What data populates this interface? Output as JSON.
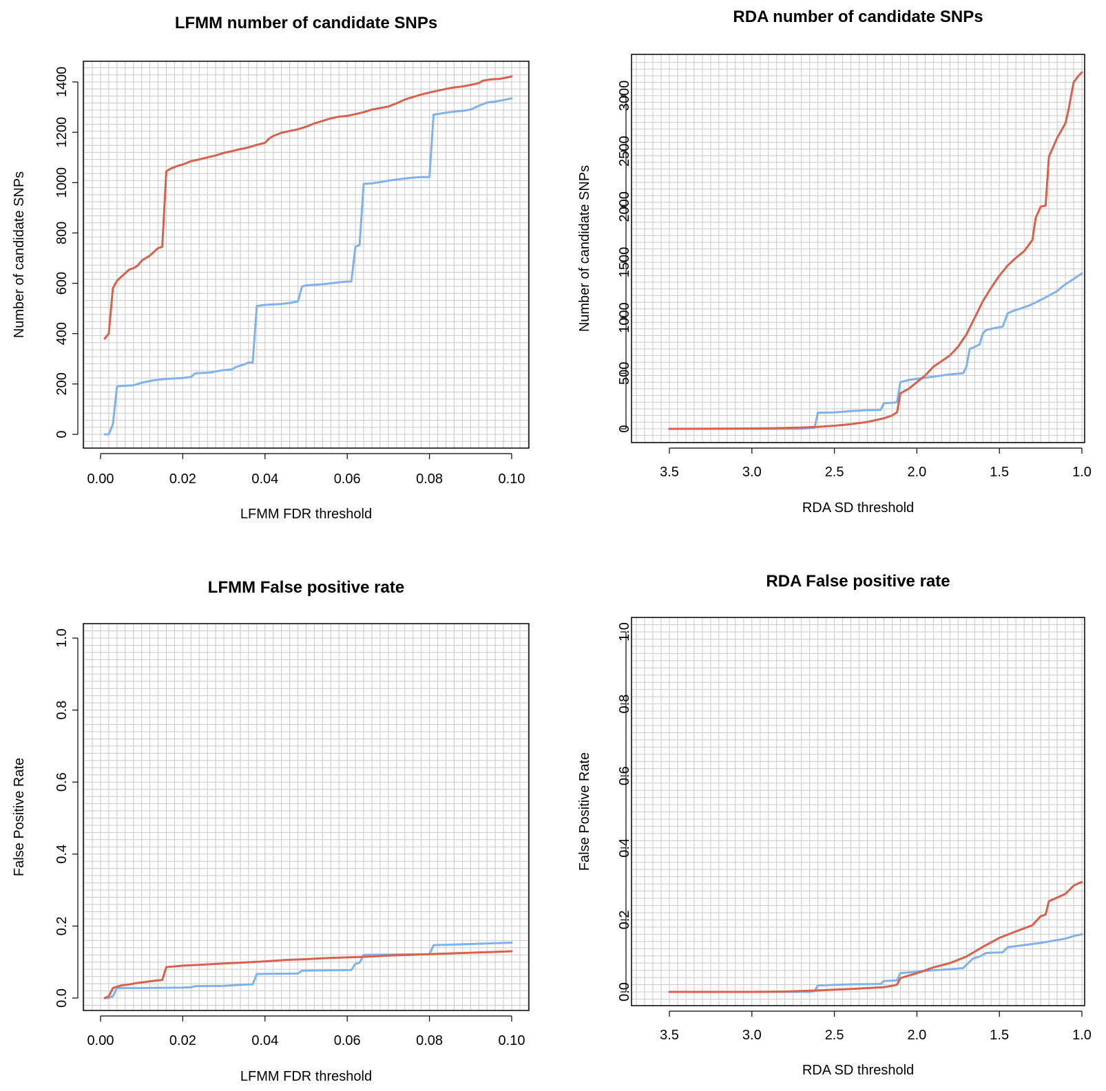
{
  "colors": {
    "red": "#d9604a",
    "blue": "#7fb2ec",
    "grid": "#c8c8c8"
  },
  "chart_data": [
    {
      "type": "line",
      "title": "LFMM number of candidate SNPs",
      "xlabel": "LFMM FDR threshold",
      "ylabel": "Number of candidate SNPs",
      "xlim": [
        0.0,
        0.1
      ],
      "ylim": [
        0,
        1400
      ],
      "xticks": [
        "0.00",
        "0.02",
        "0.04",
        "0.06",
        "0.08",
        "0.10"
      ],
      "yticks": [
        "0",
        "200",
        "400",
        "600",
        "800",
        "1000",
        "1200",
        "1400"
      ],
      "grid": true,
      "series": [
        {
          "color": "red",
          "x": [
            0.001,
            0.002,
            0.003,
            0.004,
            0.005,
            0.006,
            0.007,
            0.008,
            0.009,
            0.01,
            0.011,
            0.012,
            0.013,
            0.014,
            0.015,
            0.016,
            0.017,
            0.018,
            0.019,
            0.02,
            0.022,
            0.024,
            0.026,
            0.028,
            0.03,
            0.032,
            0.034,
            0.036,
            0.038,
            0.04,
            0.041,
            0.042,
            0.044,
            0.046,
            0.048,
            0.05,
            0.052,
            0.054,
            0.056,
            0.058,
            0.06,
            0.062,
            0.064,
            0.066,
            0.068,
            0.07,
            0.072,
            0.073,
            0.074,
            0.076,
            0.078,
            0.08,
            0.082,
            0.084,
            0.086,
            0.088,
            0.09,
            0.092,
            0.093,
            0.095,
            0.097,
            0.099,
            0.1
          ],
          "y": [
            380,
            400,
            580,
            610,
            625,
            640,
            655,
            660,
            670,
            690,
            700,
            710,
            725,
            740,
            745,
            1045,
            1055,
            1062,
            1068,
            1072,
            1085,
            1092,
            1100,
            1108,
            1118,
            1125,
            1133,
            1140,
            1150,
            1158,
            1175,
            1185,
            1198,
            1205,
            1212,
            1222,
            1235,
            1245,
            1255,
            1262,
            1265,
            1272,
            1280,
            1290,
            1296,
            1302,
            1315,
            1322,
            1330,
            1340,
            1350,
            1358,
            1365,
            1372,
            1378,
            1382,
            1388,
            1395,
            1405,
            1410,
            1412,
            1418,
            1422
          ]
        },
        {
          "color": "blue",
          "x": [
            0.001,
            0.002,
            0.003,
            0.004,
            0.005,
            0.008,
            0.01,
            0.013,
            0.016,
            0.018,
            0.02,
            0.022,
            0.023,
            0.025,
            0.027,
            0.028,
            0.03,
            0.032,
            0.033,
            0.035,
            0.036,
            0.037,
            0.038,
            0.04,
            0.042,
            0.044,
            0.046,
            0.048,
            0.049,
            0.05,
            0.052,
            0.054,
            0.056,
            0.058,
            0.06,
            0.061,
            0.062,
            0.063,
            0.064,
            0.066,
            0.068,
            0.07,
            0.072,
            0.074,
            0.076,
            0.078,
            0.08,
            0.081,
            0.082,
            0.084,
            0.086,
            0.088,
            0.09,
            0.092,
            0.094,
            0.096,
            0.098,
            0.1
          ],
          "y": [
            0,
            0,
            40,
            190,
            192,
            195,
            205,
            215,
            220,
            222,
            224,
            228,
            242,
            244,
            246,
            250,
            255,
            258,
            268,
            278,
            285,
            285,
            510,
            514,
            516,
            518,
            522,
            528,
            587,
            592,
            594,
            596,
            600,
            604,
            607,
            607,
            745,
            752,
            995,
            997,
            1002,
            1008,
            1012,
            1016,
            1020,
            1022,
            1022,
            1270,
            1272,
            1278,
            1282,
            1285,
            1290,
            1305,
            1318,
            1322,
            1328,
            1335
          ]
        }
      ]
    },
    {
      "type": "line",
      "title": "RDA number of candidate SNPs",
      "xlabel": "RDA SD threshold",
      "ylabel": "Number of candidate SNPs",
      "xlim": [
        3.5,
        1.0
      ],
      "ylim": [
        0,
        3000
      ],
      "xticks": [
        "3.5",
        "3.0",
        "2.5",
        "2.0",
        "1.5",
        "1.0"
      ],
      "yticks": [
        "0",
        "500",
        "1000",
        "1500",
        "2000",
        "2500",
        "3000"
      ],
      "grid": true,
      "series": [
        {
          "color": "red",
          "x": [
            3.5,
            3.2,
            3.0,
            2.9,
            2.8,
            2.7,
            2.6,
            2.5,
            2.4,
            2.3,
            2.2,
            2.15,
            2.12,
            2.1,
            2.05,
            2.0,
            1.95,
            1.9,
            1.85,
            1.8,
            1.75,
            1.7,
            1.65,
            1.6,
            1.55,
            1.5,
            1.45,
            1.4,
            1.35,
            1.3,
            1.28,
            1.25,
            1.22,
            1.2,
            1.15,
            1.1,
            1.08,
            1.05,
            1.02,
            1.0
          ],
          "y": [
            0,
            1,
            3,
            5,
            8,
            12,
            18,
            28,
            42,
            62,
            95,
            120,
            150,
            320,
            360,
            420,
            480,
            560,
            610,
            660,
            740,
            850,
            1000,
            1150,
            1270,
            1380,
            1470,
            1540,
            1600,
            1700,
            1900,
            2000,
            2010,
            2450,
            2620,
            2750,
            2880,
            3120,
            3180,
            3210
          ]
        },
        {
          "color": "blue",
          "x": [
            3.5,
            2.7,
            2.62,
            2.6,
            2.5,
            2.4,
            2.3,
            2.22,
            2.2,
            2.15,
            2.12,
            2.1,
            2.05,
            2.0,
            1.95,
            1.9,
            1.8,
            1.72,
            1.7,
            1.68,
            1.66,
            1.62,
            1.6,
            1.58,
            1.52,
            1.48,
            1.45,
            1.42,
            1.38,
            1.32,
            1.25,
            1.2,
            1.15,
            1.12,
            1.08,
            1.04,
            1.0
          ],
          "y": [
            0,
            0,
            10,
            145,
            148,
            160,
            168,
            170,
            230,
            235,
            240,
            420,
            440,
            450,
            460,
            470,
            490,
            500,
            560,
            720,
            730,
            760,
            860,
            890,
            910,
            920,
            1040,
            1060,
            1080,
            1110,
            1160,
            1200,
            1240,
            1280,
            1320,
            1360,
            1400
          ]
        }
      ]
    },
    {
      "type": "line",
      "title": "LFMM False positive rate",
      "xlabel": "LFMM FDR threshold",
      "ylabel": "False Positive Rate",
      "xlim": [
        0.0,
        0.1
      ],
      "ylim": [
        0.0,
        1.0
      ],
      "xticks": [
        "0.00",
        "0.02",
        "0.04",
        "0.06",
        "0.08",
        "0.10"
      ],
      "yticks": [
        "0.0",
        "0.2",
        "0.4",
        "0.6",
        "0.8",
        "1.0"
      ],
      "grid": true,
      "series": [
        {
          "color": "red",
          "x": [
            0.001,
            0.002,
            0.003,
            0.005,
            0.007,
            0.009,
            0.011,
            0.013,
            0.015,
            0.016,
            0.018,
            0.02,
            0.025,
            0.03,
            0.035,
            0.04,
            0.045,
            0.05,
            0.055,
            0.06,
            0.065,
            0.07,
            0.075,
            0.08,
            0.085,
            0.09,
            0.095,
            0.1
          ],
          "y": [
            0.0,
            0.005,
            0.028,
            0.035,
            0.038,
            0.042,
            0.045,
            0.048,
            0.05,
            0.086,
            0.088,
            0.09,
            0.093,
            0.096,
            0.099,
            0.102,
            0.106,
            0.108,
            0.111,
            0.113,
            0.115,
            0.118,
            0.12,
            0.122,
            0.124,
            0.126,
            0.128,
            0.13
          ]
        },
        {
          "color": "blue",
          "x": [
            0.001,
            0.002,
            0.003,
            0.004,
            0.01,
            0.02,
            0.022,
            0.023,
            0.03,
            0.036,
            0.037,
            0.038,
            0.048,
            0.049,
            0.061,
            0.062,
            0.063,
            0.064,
            0.07,
            0.08,
            0.081,
            0.09,
            0.1
          ],
          "y": [
            0.0,
            0.0,
            0.005,
            0.028,
            0.028,
            0.029,
            0.03,
            0.033,
            0.034,
            0.038,
            0.038,
            0.067,
            0.068,
            0.076,
            0.078,
            0.095,
            0.098,
            0.12,
            0.121,
            0.122,
            0.147,
            0.15,
            0.154
          ]
        }
      ]
    },
    {
      "type": "line",
      "title": "RDA False positive rate",
      "xlabel": "RDA SD threshold",
      "ylabel": "False Positive Rate",
      "xlim": [
        3.5,
        1.0
      ],
      "ylim": [
        0.0,
        1.0
      ],
      "xticks": [
        "3.5",
        "3.0",
        "2.5",
        "2.0",
        "1.5",
        "1.0"
      ],
      "yticks": [
        "0.0",
        "0.2",
        "0.4",
        "0.6",
        "0.8",
        "1.0"
      ],
      "grid": true,
      "series": [
        {
          "color": "red",
          "x": [
            3.5,
            3.0,
            2.8,
            2.6,
            2.4,
            2.2,
            2.15,
            2.12,
            2.1,
            2.0,
            1.9,
            1.8,
            1.7,
            1.6,
            1.5,
            1.4,
            1.3,
            1.25,
            1.22,
            1.2,
            1.15,
            1.1,
            1.05,
            1.02,
            1.0
          ],
          "y": [
            0.0,
            0.0,
            0.001,
            0.004,
            0.008,
            0.013,
            0.017,
            0.02,
            0.038,
            0.052,
            0.068,
            0.08,
            0.098,
            0.125,
            0.15,
            0.168,
            0.185,
            0.21,
            0.215,
            0.252,
            0.262,
            0.272,
            0.295,
            0.302,
            0.305
          ]
        },
        {
          "color": "blue",
          "x": [
            3.5,
            2.65,
            2.62,
            2.6,
            2.4,
            2.22,
            2.2,
            2.12,
            2.1,
            2.0,
            1.9,
            1.8,
            1.72,
            1.7,
            1.66,
            1.62,
            1.58,
            1.48,
            1.45,
            1.35,
            1.25,
            1.2,
            1.1,
            1.05,
            1.0
          ],
          "y": [
            0.0,
            0.0,
            0.002,
            0.018,
            0.021,
            0.022,
            0.03,
            0.032,
            0.052,
            0.056,
            0.06,
            0.063,
            0.066,
            0.075,
            0.093,
            0.098,
            0.108,
            0.11,
            0.124,
            0.13,
            0.136,
            0.14,
            0.148,
            0.155,
            0.16
          ]
        }
      ]
    }
  ]
}
